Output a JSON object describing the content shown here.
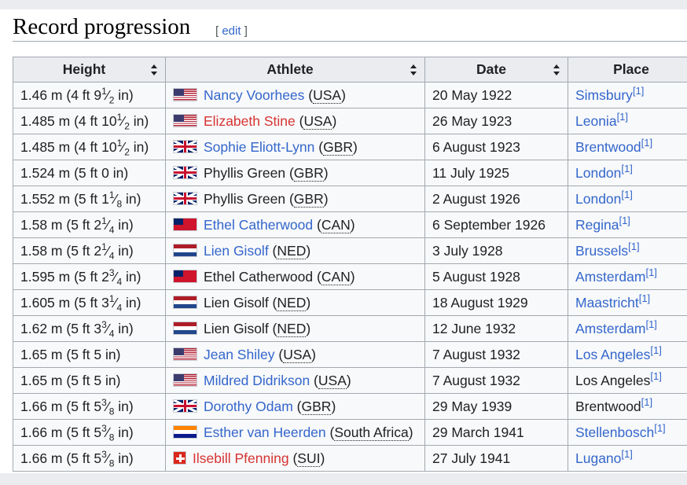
{
  "section": {
    "title": "Record progression",
    "edit_open": "[",
    "edit_label": "edit",
    "edit_close": "]"
  },
  "table": {
    "headers": [
      "Height",
      "Athlete",
      "Date",
      "Place"
    ],
    "rows": [
      {
        "height": [
          "1.46 m (4 ft 9",
          "1",
          "2",
          " in)"
        ],
        "flag": "usa",
        "athlete": "Nancy Voorhees",
        "athlete_style": "link",
        "country": "USA",
        "date": "20 May 1922",
        "place": "Simsbury",
        "place_link": true,
        "ref": "[1]"
      },
      {
        "height": [
          "1.485 m (4 ft 10",
          "1",
          "2",
          " in)"
        ],
        "flag": "usa",
        "athlete": "Elizabeth Stine",
        "athlete_style": "red",
        "country": "USA",
        "date": "26 May 1923",
        "place": "Leonia",
        "place_link": true,
        "ref": "[1]"
      },
      {
        "height": [
          "1.485 m (4 ft 10",
          "1",
          "2",
          " in)"
        ],
        "flag": "gbr",
        "athlete": "Sophie Eliott-Lynn",
        "athlete_style": "link",
        "country": "GBR",
        "date": "6 August 1923",
        "place": "Brentwood",
        "place_link": true,
        "ref": "[1]"
      },
      {
        "height": [
          "1.524 m (5 ft 0 in)"
        ],
        "flag": "gbr",
        "athlete": "Phyllis Green",
        "athlete_style": "plain",
        "country": "GBR",
        "date": "11 July 1925",
        "place": "London",
        "place_link": true,
        "ref": "[1]"
      },
      {
        "height": [
          "1.552 m (5 ft 1",
          "1",
          "8",
          " in)"
        ],
        "flag": "gbr",
        "athlete": "Phyllis Green",
        "athlete_style": "plain",
        "country": "GBR",
        "date": "2 August 1926",
        "place": "London",
        "place_link": true,
        "ref": "[1]"
      },
      {
        "height": [
          "1.58 m (5 ft 2",
          "1",
          "4",
          " in)"
        ],
        "flag": "can",
        "athlete": "Ethel Catherwood",
        "athlete_style": "link",
        "country": "CAN",
        "date": "6 September 1926",
        "place": "Regina",
        "place_link": true,
        "ref": "[1]"
      },
      {
        "height": [
          "1.58 m (5 ft 2",
          "1",
          "4",
          " in)"
        ],
        "flag": "ned",
        "athlete": "Lien Gisolf",
        "athlete_style": "link",
        "country": "NED",
        "date": "3 July 1928",
        "place": "Brussels",
        "place_link": true,
        "ref": "[1]"
      },
      {
        "height": [
          "1.595 m (5 ft 2",
          "3",
          "4",
          " in)"
        ],
        "flag": "can",
        "athlete": "Ethel Catherwood",
        "athlete_style": "plain",
        "country": "CAN",
        "date": "5 August 1928",
        "place": "Amsterdam",
        "place_link": true,
        "ref": "[1]"
      },
      {
        "height": [
          "1.605 m (5 ft 3",
          "1",
          "4",
          " in)"
        ],
        "flag": "ned",
        "athlete": "Lien Gisolf",
        "athlete_style": "plain",
        "country": "NED",
        "date": "18 August 1929",
        "place": "Maastricht",
        "place_link": true,
        "ref": "[1]"
      },
      {
        "height": [
          "1.62 m (5 ft 3",
          "3",
          "4",
          " in)"
        ],
        "flag": "ned",
        "athlete": "Lien Gisolf",
        "athlete_style": "plain",
        "country": "NED",
        "date": "12 June 1932",
        "place": "Amsterdam",
        "place_link": true,
        "ref": "[1]"
      },
      {
        "height": [
          "1.65 m (5 ft 5 in)"
        ],
        "flag": "usa",
        "athlete": "Jean Shiley",
        "athlete_style": "link",
        "country": "USA",
        "date": "7 August 1932",
        "place": "Los Angeles",
        "place_link": true,
        "ref": "[1]"
      },
      {
        "height": [
          "1.65 m (5 ft 5 in)"
        ],
        "flag": "usa",
        "athlete": "Mildred Didrikson",
        "athlete_style": "link",
        "country": "USA",
        "date": "7 August 1932",
        "place": "Los Angeles",
        "place_link": false,
        "ref": "[1]"
      },
      {
        "height": [
          "1.66 m (5 ft 5",
          "3",
          "8",
          " in)"
        ],
        "flag": "gbr",
        "athlete": "Dorothy Odam",
        "athlete_style": "link",
        "country": "GBR",
        "date": "29 May 1939",
        "place": "Brentwood",
        "place_link": false,
        "ref": "[1]"
      },
      {
        "height": [
          "1.66 m (5 ft 5",
          "3",
          "8",
          " in)"
        ],
        "flag": "rsa",
        "athlete": "Esther van Heerden",
        "athlete_style": "link",
        "country": "South Africa",
        "date": "29 March 1941",
        "place": "Stellenbosch",
        "place_link": true,
        "ref": "[1]"
      },
      {
        "height": [
          "1.66 m (5 ft 5",
          "3",
          "8",
          " in)"
        ],
        "flag": "sui",
        "athlete": "Ilsebill Pfenning",
        "athlete_style": "red",
        "country": "SUI",
        "date": "27 July 1941",
        "place": "Lugano",
        "place_link": true,
        "ref": "[1]"
      }
    ]
  },
  "colors": {
    "link": "#3366cc",
    "redlink": "#d73333",
    "header_bg": "#eaecf0",
    "cell_bg": "#f8f9fa",
    "border": "#a2a9b1"
  }
}
